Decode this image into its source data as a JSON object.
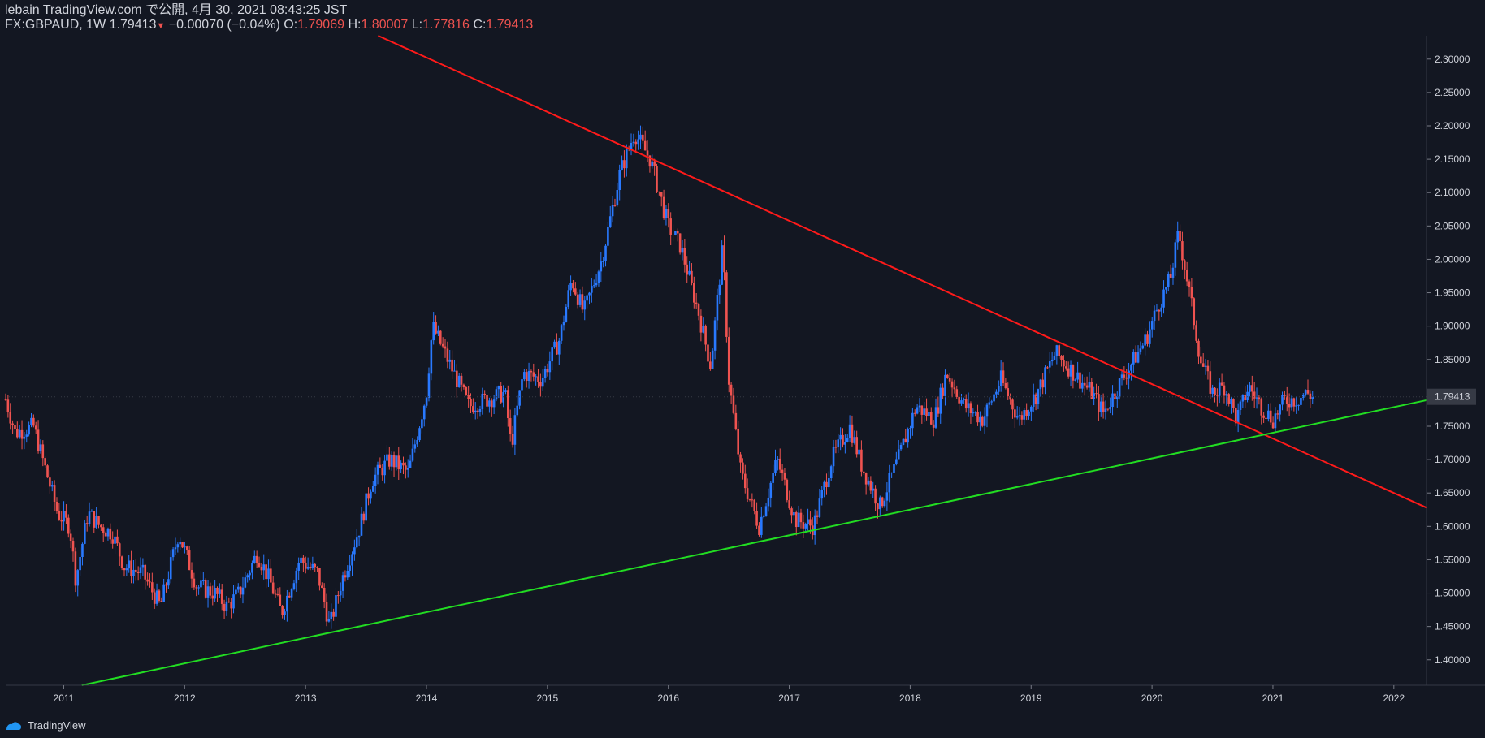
{
  "header": {
    "line1": "lebain TradingView.com で公開, 4月 30, 2021 08:43:25 JST",
    "symbol": "FX:GBPAUD, 1W",
    "last": "1.79413",
    "change": "−0.00070 (−0.04%)",
    "o_label": "O:",
    "o_value": "1.79069",
    "h_label": "H:",
    "h_value": "1.80007",
    "l_label": "L:",
    "l_value": "1.77816",
    "c_label": "C:",
    "c_value": "1.79413"
  },
  "footer": {
    "brand": "TradingView"
  },
  "colors": {
    "background": "#131722",
    "up": "#2979ff",
    "down": "#ef5350",
    "resistance": "#ff1a1a",
    "support": "#22dd22",
    "axis": "#787b86"
  },
  "chart_data": {
    "type": "candlestick",
    "x_ticks": [
      "2011",
      "2012",
      "2013",
      "2014",
      "2015",
      "2016",
      "2017",
      "2018",
      "2019",
      "2020",
      "2021",
      "2022"
    ],
    "y_ticks": [
      "2.30000",
      "2.25000",
      "2.20000",
      "2.15000",
      "2.10000",
      "2.05000",
      "2.00000",
      "1.95000",
      "1.90000",
      "1.85000",
      "1.80000",
      "1.79413",
      "1.75000",
      "1.70000",
      "1.65000",
      "1.60000",
      "1.55000",
      "1.50000",
      "1.45000",
      "1.40000"
    ],
    "ylim": [
      1.362,
      2.335
    ],
    "xlim": [
      2010.52,
      2022.27
    ],
    "last_price": "1.79413",
    "price_path": [
      [
        2010.52,
        1.79
      ],
      [
        2010.6,
        1.74
      ],
      [
        2010.75,
        1.75
      ],
      [
        2010.95,
        1.62
      ],
      [
        2011.05,
        1.6
      ],
      [
        2011.1,
        1.52
      ],
      [
        2011.2,
        1.62
      ],
      [
        2011.3,
        1.6
      ],
      [
        2011.4,
        1.59
      ],
      [
        2011.5,
        1.54
      ],
      [
        2011.65,
        1.53
      ],
      [
        2011.8,
        1.48
      ],
      [
        2011.95,
        1.59
      ],
      [
        2012.1,
        1.51
      ],
      [
        2012.25,
        1.5
      ],
      [
        2012.35,
        1.48
      ],
      [
        2012.45,
        1.5
      ],
      [
        2012.6,
        1.56
      ],
      [
        2012.7,
        1.52
      ],
      [
        2012.8,
        1.47
      ],
      [
        2012.95,
        1.55
      ],
      [
        2013.1,
        1.53
      ],
      [
        2013.2,
        1.45
      ],
      [
        2013.3,
        1.52
      ],
      [
        2013.45,
        1.6
      ],
      [
        2013.55,
        1.67
      ],
      [
        2013.7,
        1.7
      ],
      [
        2013.85,
        1.68
      ],
      [
        2014.0,
        1.8
      ],
      [
        2014.05,
        1.9
      ],
      [
        2014.2,
        1.84
      ],
      [
        2014.35,
        1.78
      ],
      [
        2014.5,
        1.79
      ],
      [
        2014.65,
        1.8
      ],
      [
        2014.7,
        1.72
      ],
      [
        2014.8,
        1.83
      ],
      [
        2014.95,
        1.82
      ],
      [
        2015.1,
        1.88
      ],
      [
        2015.2,
        1.97
      ],
      [
        2015.3,
        1.92
      ],
      [
        2015.45,
        2.0
      ],
      [
        2015.6,
        2.13
      ],
      [
        2015.72,
        2.19
      ],
      [
        2015.85,
        2.15
      ],
      [
        2016.0,
        2.05
      ],
      [
        2016.1,
        2.02
      ],
      [
        2016.25,
        1.92
      ],
      [
        2016.35,
        1.84
      ],
      [
        2016.45,
        2.02
      ],
      [
        2016.5,
        1.82
      ],
      [
        2016.6,
        1.68
      ],
      [
        2016.75,
        1.6
      ],
      [
        2016.9,
        1.7
      ],
      [
        2017.05,
        1.61
      ],
      [
        2017.2,
        1.6
      ],
      [
        2017.35,
        1.7
      ],
      [
        2017.5,
        1.75
      ],
      [
        2017.6,
        1.69
      ],
      [
        2017.75,
        1.63
      ],
      [
        2017.9,
        1.7
      ],
      [
        2018.05,
        1.78
      ],
      [
        2018.2,
        1.76
      ],
      [
        2018.3,
        1.83
      ],
      [
        2018.45,
        1.78
      ],
      [
        2018.6,
        1.76
      ],
      [
        2018.75,
        1.82
      ],
      [
        2018.9,
        1.76
      ],
      [
        2019.05,
        1.8
      ],
      [
        2019.2,
        1.86
      ],
      [
        2019.35,
        1.83
      ],
      [
        2019.5,
        1.8
      ],
      [
        2019.6,
        1.77
      ],
      [
        2019.75,
        1.82
      ],
      [
        2019.85,
        1.85
      ],
      [
        2019.95,
        1.88
      ],
      [
        2020.05,
        1.93
      ],
      [
        2020.15,
        1.97
      ],
      [
        2020.22,
        2.04
      ],
      [
        2020.3,
        1.96
      ],
      [
        2020.4,
        1.85
      ],
      [
        2020.5,
        1.8
      ],
      [
        2020.6,
        1.81
      ],
      [
        2020.7,
        1.76
      ],
      [
        2020.8,
        1.81
      ],
      [
        2020.9,
        1.78
      ],
      [
        2021.0,
        1.76
      ],
      [
        2021.1,
        1.79
      ],
      [
        2021.2,
        1.79
      ],
      [
        2021.28,
        1.8
      ],
      [
        2021.33,
        1.794
      ]
    ],
    "trendlines": [
      {
        "name": "resistance",
        "from": [
          2013.6,
          2.335
        ],
        "to": [
          2022.27,
          1.628
        ]
      },
      {
        "name": "support",
        "from": [
          2011.15,
          1.362
        ],
        "to": [
          2022.27,
          1.789
        ]
      }
    ]
  }
}
